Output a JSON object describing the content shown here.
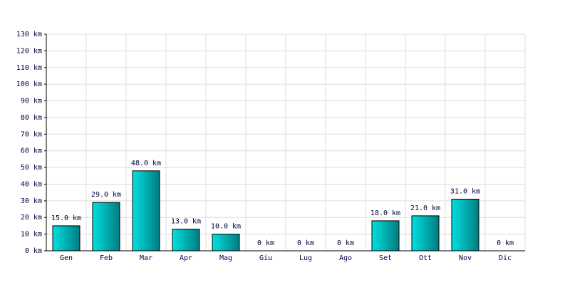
{
  "chart_data": {
    "type": "bar",
    "categories": [
      "Gen",
      "Feb",
      "Mar",
      "Apr",
      "Mag",
      "Giu",
      "Lug",
      "Ago",
      "Set",
      "Ott",
      "Nov",
      "Dic"
    ],
    "values": [
      15,
      29,
      48,
      13,
      10,
      0,
      0,
      0,
      18,
      21,
      31,
      0
    ],
    "value_labels": [
      "15.0 km",
      "29.0 km",
      "48.0 km",
      "13.0 km",
      "10.0 km",
      "0 km",
      "0 km",
      "0 km",
      "18.0 km",
      "21.0 km",
      "31.0 km",
      "0 km"
    ],
    "color": "#00e0e0",
    "ylim": [
      0,
      130
    ],
    "yticks": [
      {
        "value": 0,
        "label": "0 km"
      },
      {
        "value": 10,
        "label": "10 km"
      },
      {
        "value": 20,
        "label": "20 km"
      },
      {
        "value": 30,
        "label": "30 km"
      },
      {
        "value": 40,
        "label": "40 km"
      },
      {
        "value": 50,
        "label": "50 km"
      },
      {
        "value": 60,
        "label": "60 km"
      },
      {
        "value": 70,
        "label": "70 km"
      },
      {
        "value": 80,
        "label": "80 km"
      },
      {
        "value": 90,
        "label": "90 km"
      },
      {
        "value": 100,
        "label": "100 km"
      },
      {
        "value": 110,
        "label": "110 km"
      },
      {
        "value": 120,
        "label": "120 km"
      },
      {
        "value": 130,
        "label": "130 km"
      }
    ],
    "grid": true
  }
}
